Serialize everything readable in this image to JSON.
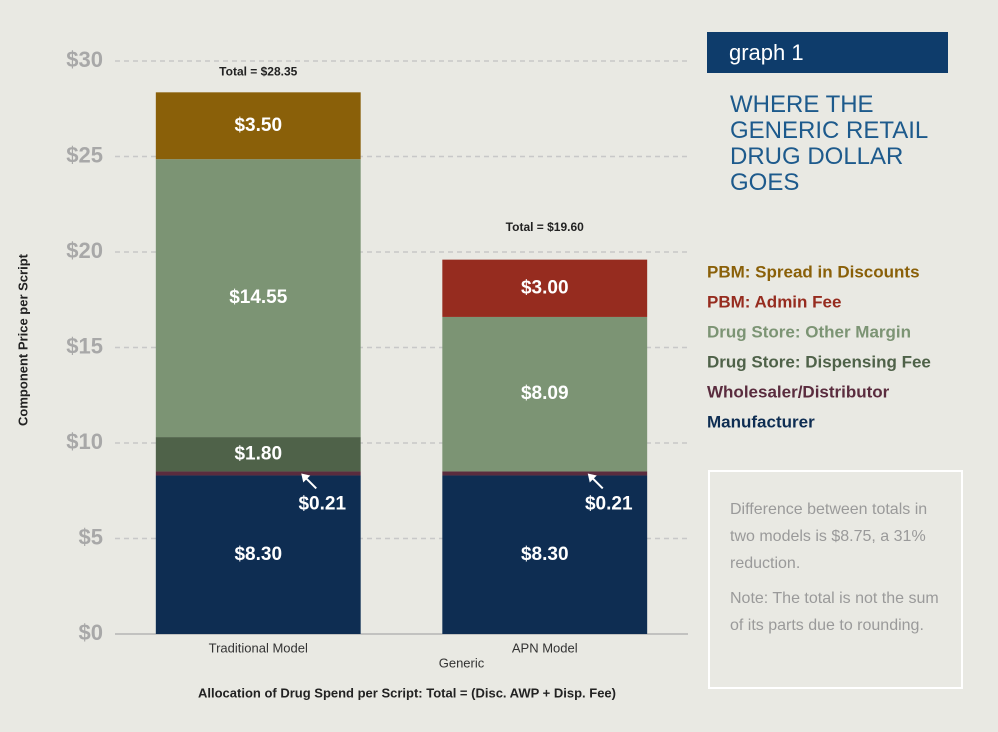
{
  "chart_data": {
    "type": "stacked-bar",
    "tag": "graph 1",
    "title": "WHERE THE GENERIC RETAIL DRUG DOLLAR GOES",
    "categories": [
      "Traditional Model",
      "APN Model"
    ],
    "category_group": "Generic",
    "x_label": "Allocation of Drug Spend per Script: Total = (Disc. AWP + Disp. Fee)",
    "y_label": "Component Price per Script",
    "ylim": [
      0,
      30
    ],
    "yticks": [
      {
        "value": 0,
        "label": "$0"
      },
      {
        "value": 5,
        "label": "$5"
      },
      {
        "value": 10,
        "label": "$10"
      },
      {
        "value": 15,
        "label": "$15"
      },
      {
        "value": 20,
        "label": "$20"
      },
      {
        "value": 25,
        "label": "$25"
      },
      {
        "value": 30,
        "label": "$30"
      }
    ],
    "grid": true,
    "series": [
      {
        "name": "Manufacturer",
        "color": "#0e2d52",
        "values": [
          8.3,
          8.3
        ],
        "value_labels": [
          "$8.30",
          "$8.30"
        ]
      },
      {
        "name": "Wholesaler/Distributor",
        "color": "#5a2c3e",
        "values": [
          0.21,
          0.21
        ],
        "value_labels": [
          "$0.21",
          "$0.21"
        ]
      },
      {
        "name": "Drug Store: Dispensing Fee",
        "color": "#4f6249",
        "values": [
          1.8,
          null
        ],
        "value_labels": [
          "$1.80",
          null
        ]
      },
      {
        "name": "Drug Store: Other Margin",
        "color": "#7c9474",
        "values": [
          14.55,
          8.09
        ],
        "value_labels": [
          "$14.55",
          "$8.09"
        ]
      },
      {
        "name": "PBM: Admin Fee",
        "color": "#962c1f",
        "values": [
          null,
          3.0
        ],
        "value_labels": [
          null,
          "$3.00"
        ]
      },
      {
        "name": "PBM: Spread in Discounts",
        "color": "#8a6009",
        "values": [
          3.5,
          null
        ],
        "value_labels": [
          "$3.50",
          null
        ]
      }
    ],
    "annotations": [
      {
        "value": 28.35,
        "label": "Total = $28.35"
      },
      {
        "value": 19.6,
        "label": "Total = $19.60"
      }
    ],
    "notes": [
      "Difference between totals in two models is $8.75, a 31% reduction.",
      "Note: The total is not the sum of its parts due to rounding."
    ]
  }
}
